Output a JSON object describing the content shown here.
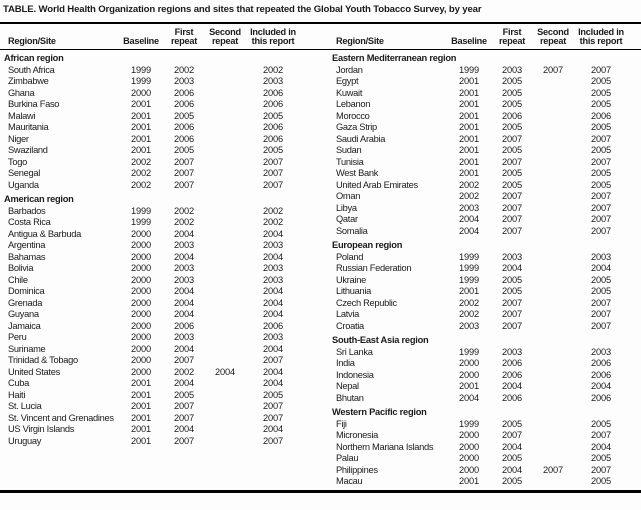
{
  "page": {
    "title": "TABLE. World Health Organization regions and sites that repeated the Global Youth Tobacco Survey, by year"
  },
  "header": {
    "region_site": "Region/Site",
    "baseline": "Baseline",
    "first_repeat": "First\nrepeat",
    "second_repeat": "Second\nrepeat",
    "included": "Included in\nthis report"
  },
  "table": {
    "columns": [
      "Region/Site",
      "Baseline",
      "First repeat",
      "Second repeat",
      "Included in this report"
    ],
    "left_sections": [
      {
        "region": "African region",
        "rows": [
          [
            "South Africa",
            "1999",
            "2002",
            "",
            "2002"
          ],
          [
            "Zimbabwe",
            "1999",
            "2003",
            "",
            "2003"
          ],
          [
            "Ghana",
            "2000",
            "2006",
            "",
            "2006"
          ],
          [
            "Burkina Faso",
            "2001",
            "2006",
            "",
            "2006"
          ],
          [
            "Malawi",
            "2001",
            "2005",
            "",
            "2005"
          ],
          [
            "Mauritania",
            "2001",
            "2006",
            "",
            "2006"
          ],
          [
            "Niger",
            "2001",
            "2006",
            "",
            "2006"
          ],
          [
            "Swaziland",
            "2001",
            "2005",
            "",
            "2005"
          ],
          [
            "Togo",
            "2002",
            "2007",
            "",
            "2007"
          ],
          [
            "Senegal",
            "2002",
            "2007",
            "",
            "2007"
          ],
          [
            "Uganda",
            "2002",
            "2007",
            "",
            "2007"
          ]
        ]
      },
      {
        "region": "American region",
        "rows": [
          [
            "Barbados",
            "1999",
            "2002",
            "",
            "2002"
          ],
          [
            "Costa Rica",
            "1999",
            "2002",
            "",
            "2002"
          ],
          [
            "Antigua & Barbuda",
            "2000",
            "2004",
            "",
            "2004"
          ],
          [
            "Argentina",
            "2000",
            "2003",
            "",
            "2003"
          ],
          [
            "Bahamas",
            "2000",
            "2004",
            "",
            "2004"
          ],
          [
            "Bolivia",
            "2000",
            "2003",
            "",
            "2003"
          ],
          [
            "Chile",
            "2000",
            "2003",
            "",
            "2003"
          ],
          [
            "Dominica",
            "2000",
            "2004",
            "",
            "2004"
          ],
          [
            "Grenada",
            "2000",
            "2004",
            "",
            "2004"
          ],
          [
            "Guyana",
            "2000",
            "2004",
            "",
            "2004"
          ],
          [
            "Jamaica",
            "2000",
            "2006",
            "",
            "2006"
          ],
          [
            "Peru",
            "2000",
            "2003",
            "",
            "2003"
          ],
          [
            "Suriname",
            "2000",
            "2004",
            "",
            "2004"
          ],
          [
            "Trinidad & Tobago",
            "2000",
            "2007",
            "",
            "2007"
          ],
          [
            "United States",
            "2000",
            "2002",
            "2004",
            "2004"
          ],
          [
            "Cuba",
            "2001",
            "2004",
            "",
            "2004"
          ],
          [
            "Haiti",
            "2001",
            "2005",
            "",
            "2005"
          ],
          [
            "St. Lucia",
            "2001",
            "2007",
            "",
            "2007"
          ],
          [
            "St. Vincent and Grenadines",
            "2001",
            "2007",
            "",
            "2007"
          ],
          [
            "US Virgin Islands",
            "2001",
            "2004",
            "",
            "2004"
          ],
          [
            "Uruguay",
            "2001",
            "2007",
            "",
            "2007"
          ]
        ]
      }
    ],
    "right_sections": [
      {
        "region": "Eastern Mediterranean region",
        "rows": [
          [
            "Jordan",
            "1999",
            "2003",
            "2007",
            "2007"
          ],
          [
            "Egypt",
            "2001",
            "2005",
            "",
            "2005"
          ],
          [
            "Kuwait",
            "2001",
            "2005",
            "",
            "2005"
          ],
          [
            "Lebanon",
            "2001",
            "2005",
            "",
            "2005"
          ],
          [
            "Morocco",
            "2001",
            "2006",
            "",
            "2006"
          ],
          [
            "Gaza Strip",
            "2001",
            "2005",
            "",
            "2005"
          ],
          [
            "Saudi Arabia",
            "2001",
            "2007",
            "",
            "2007"
          ],
          [
            "Sudan",
            "2001",
            "2005",
            "",
            "2005"
          ],
          [
            "Tunisia",
            "2001",
            "2007",
            "",
            "2007"
          ],
          [
            "West Bank",
            "2001",
            "2005",
            "",
            "2005"
          ],
          [
            "United Arab Emirates",
            "2002",
            "2005",
            "",
            "2005"
          ],
          [
            "Oman",
            "2002",
            "2007",
            "",
            "2007"
          ],
          [
            "Libya",
            "2003",
            "2007",
            "",
            "2007"
          ],
          [
            "Qatar",
            "2004",
            "2007",
            "",
            "2007"
          ],
          [
            "Somalia",
            "2004",
            "2007",
            "",
            "2007"
          ]
        ]
      },
      {
        "region": "European region",
        "rows": [
          [
            "Poland",
            "1999",
            "2003",
            "",
            "2003"
          ],
          [
            "Russian Federation",
            "1999",
            "2004",
            "",
            "2004"
          ],
          [
            "Ukraine",
            "1999",
            "2005",
            "",
            "2005"
          ],
          [
            "Lithuania",
            "2001",
            "2005",
            "",
            "2005"
          ],
          [
            "Czech Republic",
            "2002",
            "2007",
            "",
            "2007"
          ],
          [
            "Latvia",
            "2002",
            "2007",
            "",
            "2007"
          ],
          [
            "Croatia",
            "2003",
            "2007",
            "",
            "2007"
          ]
        ]
      },
      {
        "region": "South-East Asia region",
        "rows": [
          [
            "Sri Lanka",
            "1999",
            "2003",
            "",
            "2003"
          ],
          [
            "India",
            "2000",
            "2006",
            "",
            "2006"
          ],
          [
            "Indonesia",
            "2000",
            "2006",
            "",
            "2006"
          ],
          [
            "Nepal",
            "2001",
            "2004",
            "",
            "2004"
          ],
          [
            "Bhutan",
            "2004",
            "2006",
            "",
            "2006"
          ]
        ]
      },
      {
        "region": "Western Pacific region",
        "rows": [
          [
            "Fiji",
            "1999",
            "2005",
            "",
            "2005"
          ],
          [
            "Micronesia",
            "2000",
            "2007",
            "",
            "2007"
          ],
          [
            "Northern Mariana Islands",
            "2000",
            "2004",
            "",
            "2004"
          ],
          [
            "Palau",
            "2000",
            "2005",
            "",
            "2005"
          ],
          [
            "Philippines",
            "2000",
            "2004",
            "2007",
            "2007"
          ],
          [
            "Macau",
            "2001",
            "2005",
            "",
            "2005"
          ]
        ]
      }
    ]
  }
}
